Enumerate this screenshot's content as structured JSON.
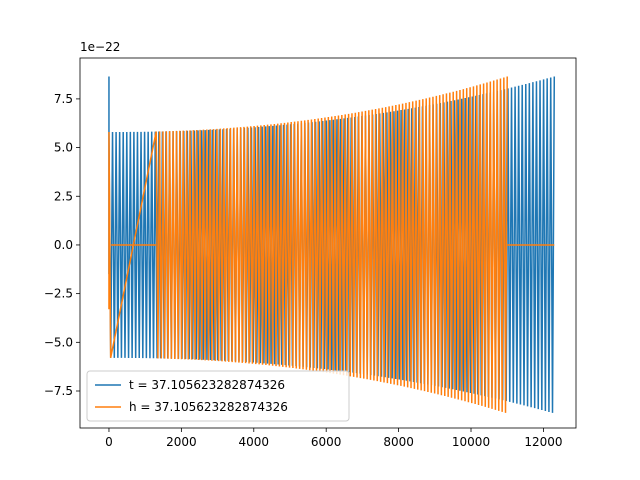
{
  "chart_data": {
    "type": "line",
    "title": "",
    "xlabel": "",
    "ylabel": "",
    "xlim": [
      -800,
      12900
    ],
    "ylim": [
      -9.4,
      9.6
    ],
    "y_scale_factor": "1e−22",
    "xticks": [
      0,
      2000,
      4000,
      6000,
      8000,
      10000,
      12000
    ],
    "xtick_labels": [
      "0",
      "2000",
      "4000",
      "6000",
      "8000",
      "10000",
      "12000"
    ],
    "yticks": [
      -7.5,
      -5.0,
      -2.5,
      0.0,
      2.5,
      5.0,
      7.5
    ],
    "ytick_labels": [
      "−7.5",
      "−5.0",
      "−2.5",
      "0.0",
      "2.5",
      "5.0",
      "7.5"
    ],
    "grid": false,
    "legend_position": "lower-left",
    "series": [
      {
        "name": "t = 37.105623282874326",
        "color": "#1f77b4",
        "signal": {
          "zero_until": 0,
          "x_end": 12300,
          "amplitude_start": 5.8,
          "amplitude_end": 8.65,
          "initial_spike": 8.65,
          "cycles": 125
        }
      },
      {
        "name": "h = 37.105623282874326",
        "color": "#ff7f0e",
        "signal": {
          "zero_from": 11000,
          "x_end": 12300,
          "amplitude_start": 5.8,
          "amplitude_end": 8.65,
          "cycles": 118,
          "gap_start": 60,
          "gap_end": 1300
        }
      }
    ]
  }
}
